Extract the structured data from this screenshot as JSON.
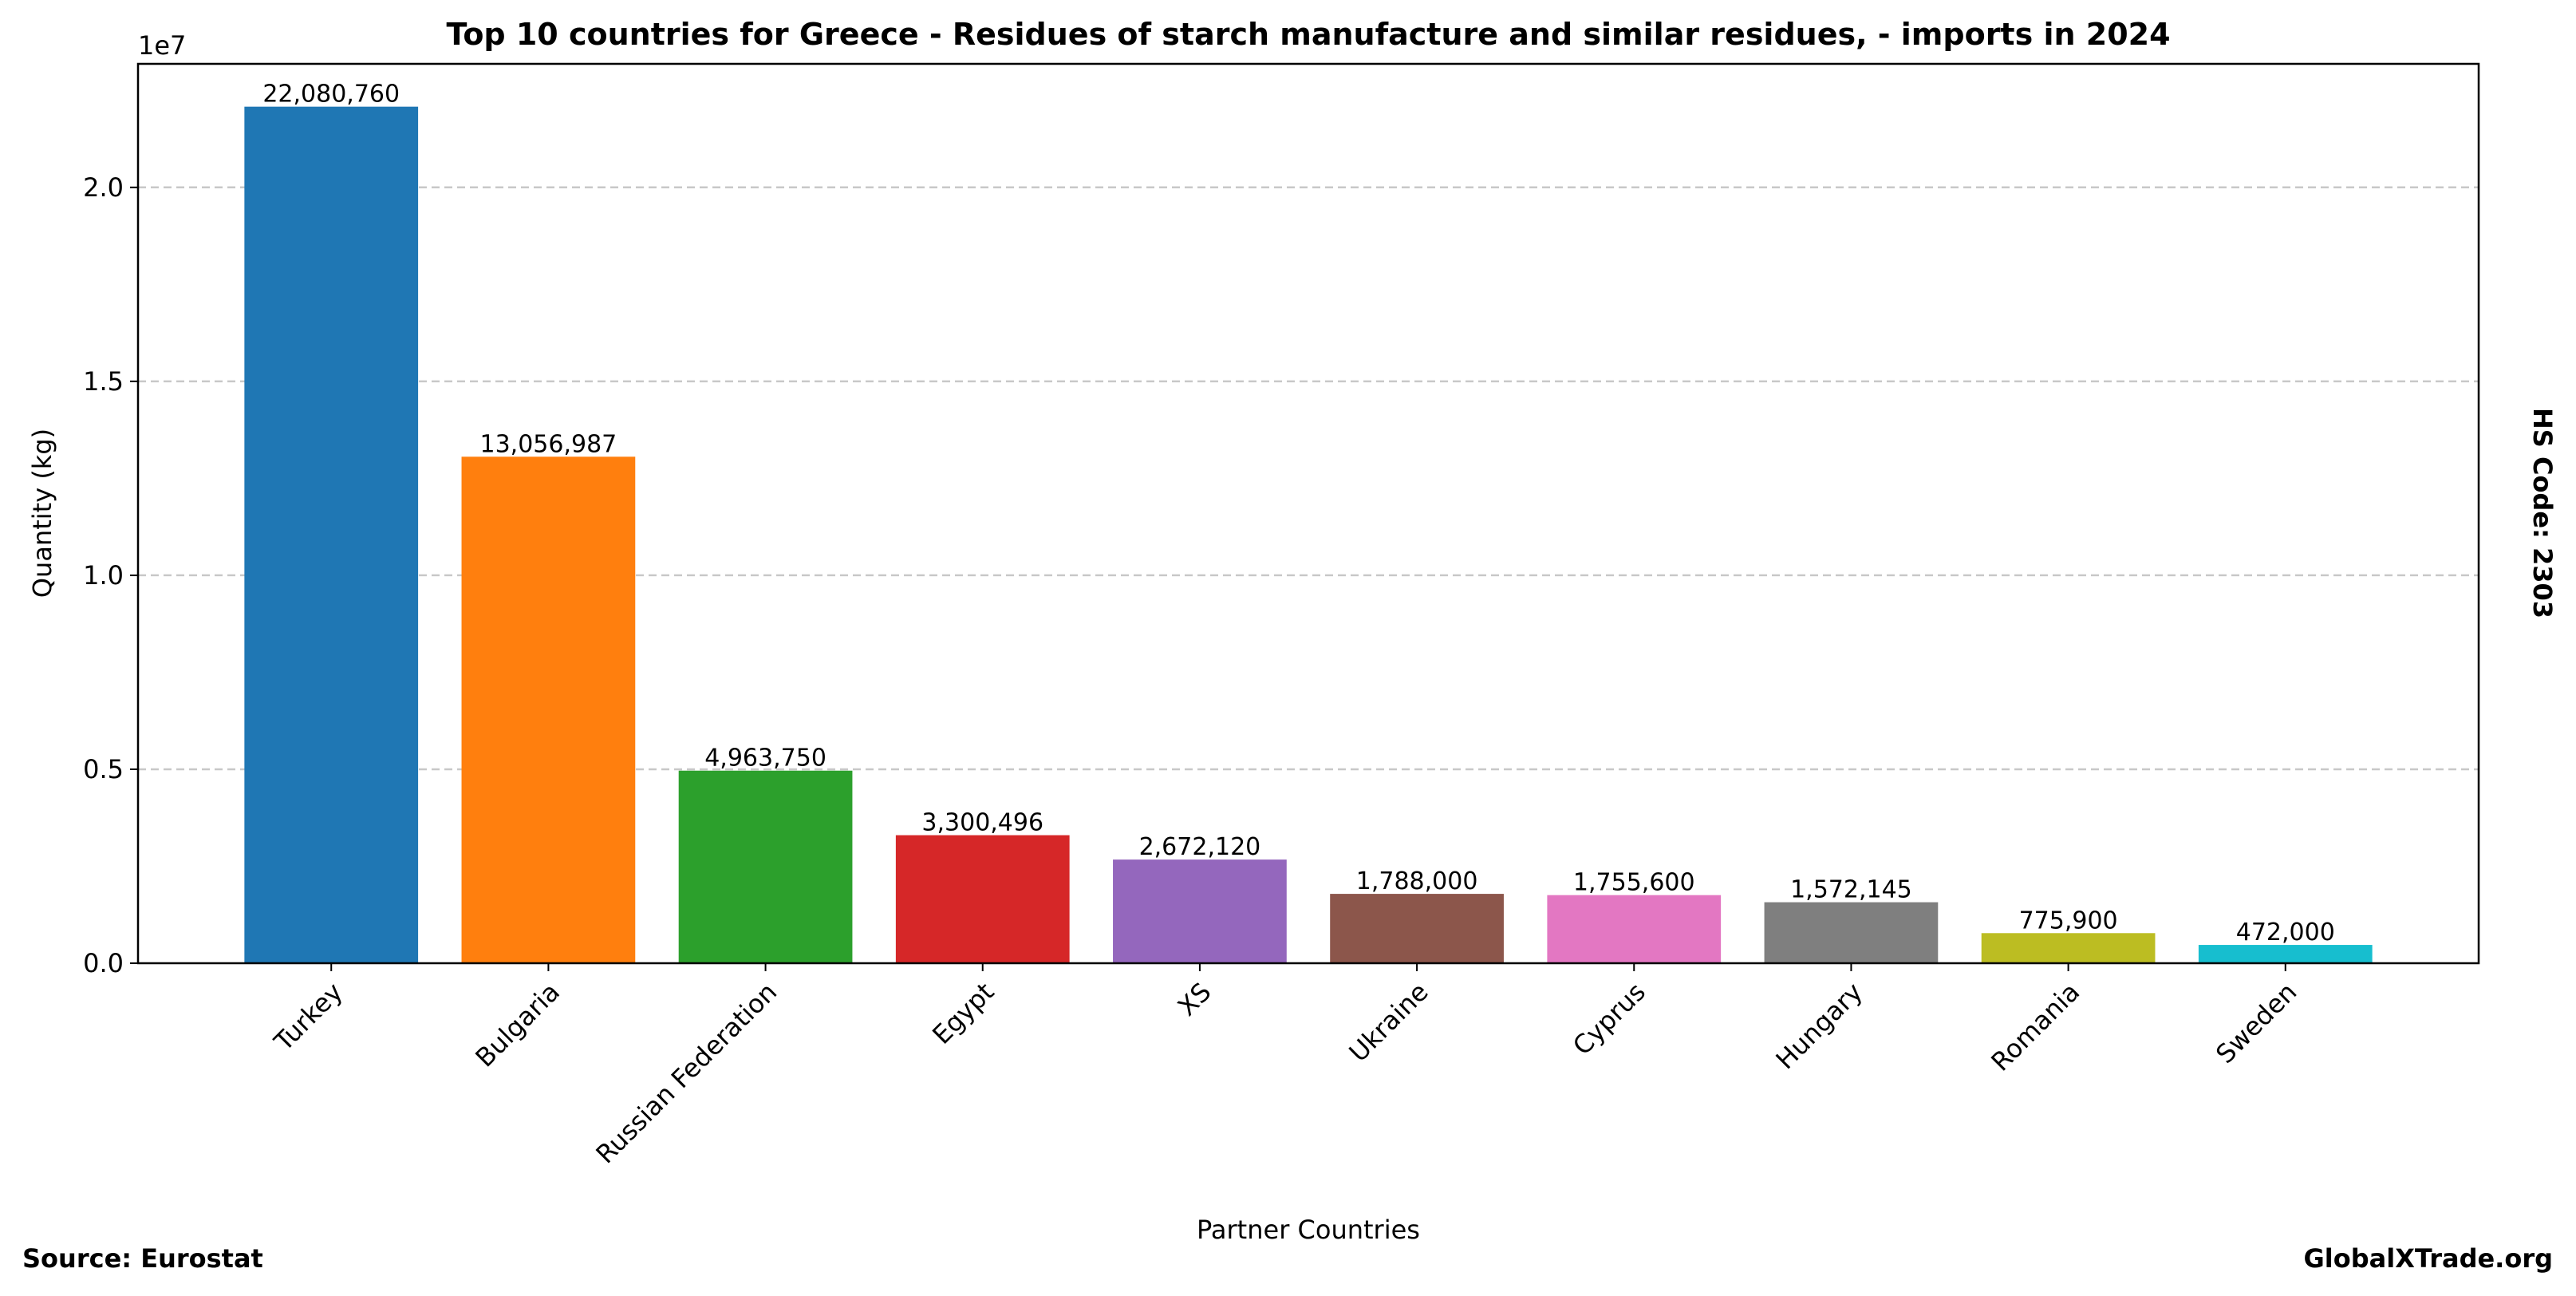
{
  "chart_data": {
    "type": "bar",
    "title": "Top 10 countries for Greece - Residues of starch manufacture and similar residues, - imports in 2024",
    "xlabel": "Partner Countries",
    "ylabel": "Quantity (kg)",
    "y_offset_label": "1e7",
    "ylim": [
      0,
      23184798
    ],
    "yticks": [
      0,
      5000000,
      10000000,
      15000000,
      20000000
    ],
    "ytick_labels": [
      "0.0",
      "0.5",
      "1.0",
      "1.5",
      "2.0"
    ],
    "grid": "y-dashed",
    "categories": [
      "Turkey",
      "Bulgaria",
      "Russian Federation",
      "Egypt",
      "XS",
      "Ukraine",
      "Cyprus",
      "Hungary",
      "Romania",
      "Sweden"
    ],
    "values": [
      22080760,
      13056987,
      4963750,
      3300496,
      2672120,
      1788000,
      1755600,
      1572145,
      775900,
      472000
    ],
    "value_labels": [
      "22,080,760",
      "13,056,987",
      "4,963,750",
      "3,300,496",
      "2,672,120",
      "1,788,000",
      "1,755,600",
      "1,572,145",
      "775,900",
      "472,000"
    ],
    "colors": [
      "#1f77b4",
      "#ff7f0e",
      "#2ca02c",
      "#d62728",
      "#9467bd",
      "#8c564b",
      "#e377c2",
      "#7f7f7f",
      "#bcbd22",
      "#17becf"
    ]
  },
  "annotations": {
    "side_label": "HS Code: 2303",
    "source": "Source: Eurostat",
    "brand": "GlobalXTrade.org"
  }
}
